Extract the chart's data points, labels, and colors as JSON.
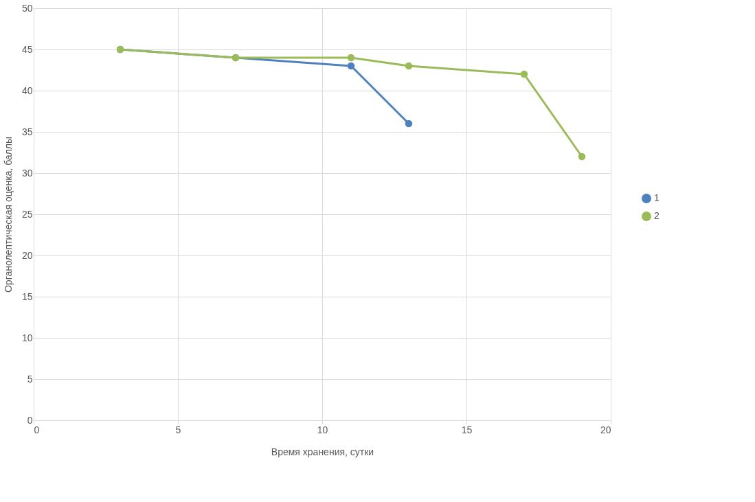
{
  "chart_data": {
    "type": "line",
    "xlabel": "Время хранения, сутки",
    "ylabel": "Органолептическая оценка, баллы",
    "series": [
      {
        "name": "1",
        "color": "#4f81bd",
        "x": [
          3,
          7,
          11,
          13
        ],
        "values": [
          45,
          44,
          43,
          36
        ]
      },
      {
        "name": "2",
        "color": "#9bbb59",
        "x": [
          3,
          7,
          11,
          13,
          17,
          19
        ],
        "values": [
          45,
          44,
          44,
          43,
          42,
          32
        ]
      }
    ],
    "xlim": [
      0,
      20
    ],
    "xticks": [
      0,
      5,
      10,
      15,
      20
    ],
    "ylim": [
      0,
      50
    ],
    "yticks": [
      0,
      5,
      10,
      15,
      20,
      25,
      30,
      35,
      40,
      45,
      50
    ],
    "grid": true,
    "legend": "right",
    "marker": "circle",
    "line_style": "solid"
  }
}
